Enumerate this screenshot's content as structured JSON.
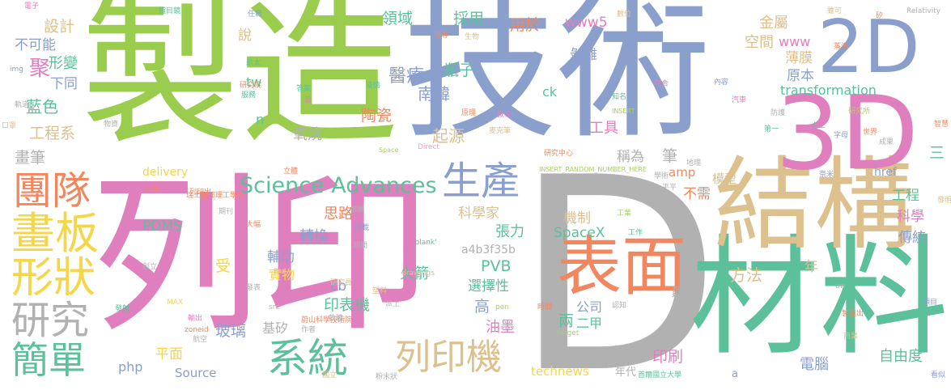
{
  "colors": {
    "green": "#9acd4e",
    "blue": "#8b9fcd",
    "pink": "#e07fbe",
    "orange": "#f2875f",
    "tan": "#dcc08d",
    "teal": "#5cc19a",
    "gray": "#b1b1b1",
    "yellow": "#f5d649",
    "lgreen": "#a9d160",
    "lpink": "#f0a0c8",
    "lorange": "#f6b88a",
    "lblue": "#a7b6d8"
  },
  "words": [
    {
      "t": "製造",
      "c": "green"
    },
    {
      "t": "技術",
      "c": "blue"
    },
    {
      "t": "列印",
      "c": "pink"
    },
    {
      "t": "D",
      "c": "gray"
    },
    {
      "t": "材料",
      "c": "teal"
    },
    {
      "t": "結構",
      "c": "tan"
    },
    {
      "t": "3D",
      "c": "pink"
    },
    {
      "t": "2D",
      "c": "blue"
    },
    {
      "t": "表面",
      "c": "orange"
    },
    {
      "t": "團隊",
      "c": "orange"
    },
    {
      "t": "畫板",
      "c": "yellow"
    },
    {
      "t": "形狀",
      "c": "yellow"
    },
    {
      "t": "研究",
      "c": "gray"
    },
    {
      "t": "簡單",
      "c": "teal"
    },
    {
      "t": "系統",
      "c": "teal"
    },
    {
      "t": "列印機",
      "c": "tan"
    },
    {
      "t": "生產",
      "c": "blue"
    },
    {
      "t": "Science Advances",
      "c": "teal"
    },
    {
      "t": "醫療",
      "c": "blue"
    },
    {
      "t": "陶瓷",
      "c": "orange"
    },
    {
      "t": "南韓",
      "c": "blue"
    },
    {
      "t": "起源",
      "c": "tan"
    },
    {
      "t": "氧烷",
      "c": "gray"
    },
    {
      "t": "畫筆",
      "c": "gray"
    },
    {
      "t": "工程系",
      "c": "tan"
    },
    {
      "t": "藍色",
      "c": "teal"
    },
    {
      "t": "設計",
      "c": "tan"
    },
    {
      "t": "不可能",
      "c": "blue"
    },
    {
      "t": "形變",
      "c": "teal"
    },
    {
      "t": "下同",
      "c": "blue"
    },
    {
      "t": "聚",
      "c": "pink"
    },
    {
      "t": "領域",
      "c": "teal"
    },
    {
      "t": "採用",
      "c": "teal"
    },
    {
      "t": "用於",
      "c": "orange"
    },
    {
      "t": "www5",
      "c": "pink"
    },
    {
      "t": "剝離",
      "c": "blue"
    },
    {
      "t": "瓶子",
      "c": "teal"
    },
    {
      "t": "金屬",
      "c": "tan"
    },
    {
      "t": "空間",
      "c": "tan"
    },
    {
      "t": "www",
      "c": "pink"
    },
    {
      "t": "薄膜",
      "c": "tan"
    },
    {
      "t": "原本",
      "c": "blue"
    },
    {
      "t": "transformation",
      "c": "teal"
    },
    {
      "t": "工具",
      "c": "pink"
    },
    {
      "t": "稱為",
      "c": "gray"
    },
    {
      "t": "筆",
      "c": "gray"
    },
    {
      "t": "amp",
      "c": "orange"
    },
    {
      "t": "模型",
      "c": "tan"
    },
    {
      "t": "href",
      "c": "blue"
    },
    {
      "t": "不需",
      "c": "orange"
    },
    {
      "t": "工程",
      "c": "teal"
    },
    {
      "t": "科學",
      "c": "pink"
    },
    {
      "t": "傳統",
      "c": "blue"
    },
    {
      "t": "年",
      "c": "tan"
    },
    {
      "t": "方法",
      "c": "tan"
    },
    {
      "t": "顛覆",
      "c": "gray"
    },
    {
      "t": "電腦",
      "c": "blue"
    },
    {
      "t": "自由度",
      "c": "teal"
    },
    {
      "t": "印刷",
      "c": "pink"
    },
    {
      "t": "思路",
      "c": "orange"
    },
    {
      "t": "科學家",
      "c": "tan"
    },
    {
      "t": "轉換",
      "c": "blue"
    },
    {
      "t": "張力",
      "c": "teal"
    },
    {
      "t": "輔助",
      "c": "blue"
    },
    {
      "t": "實物",
      "c": "yellow"
    },
    {
      "t": "受",
      "c": "yellow"
    },
    {
      "t": "PDMS",
      "c": "teal"
    },
    {
      "t": "delivery",
      "c": "yellow"
    },
    {
      "t": "tw",
      "c": "teal"
    },
    {
      "t": "說",
      "c": "tan"
    },
    {
      "t": "機制",
      "c": "tan"
    },
    {
      "t": "SpaceX",
      "c": "teal"
    },
    {
      "t": "a4b3f35b",
      "c": "gray"
    },
    {
      "t": "PVB",
      "c": "teal"
    },
    {
      "t": "火箭",
      "c": "teal"
    },
    {
      "t": "選擇性",
      "c": "teal"
    },
    {
      "t": "高",
      "c": "blue"
    },
    {
      "t": "印表機",
      "c": "teal"
    },
    {
      "t": "油墨",
      "c": "pink"
    },
    {
      "t": "二甲",
      "c": "teal"
    },
    {
      "t": "兩",
      "c": "teal"
    },
    {
      "t": "公司",
      "c": "blue"
    },
    {
      "t": "cb",
      "c": "blue"
    },
    {
      "t": "玻璃",
      "c": "blue"
    },
    {
      "t": "基矽",
      "c": "gray"
    },
    {
      "t": "平面",
      "c": "yellow"
    },
    {
      "t": "php",
      "c": "blue"
    },
    {
      "t": "Source",
      "c": "blue"
    },
    {
      "t": "technews",
      "c": "yellow"
    },
    {
      "t": "年代",
      "c": "gray"
    },
    {
      "t": "a",
      "c": "blue"
    },
    {
      "t": "三",
      "c": "teal"
    },
    {
      "t": "Relativity",
      "c": "gray"
    },
    {
      "t": "瑞士聯邦理工學院",
      "c": "orange"
    },
    {
      "t": "蔚山科學技術院",
      "c": "orange"
    },
    {
      "t": "首爾國立大學",
      "c": "teal"
    },
    {
      "t": "INSERT_RANDOM_NUMBER_HERE",
      "c": "lgreen"
    },
    {
      "t": "INSERT",
      "c": "lgreen"
    },
    {
      "t": "研究中心",
      "c": "orange"
    },
    {
      "t": "_blank'",
      "c": "teal"
    },
    {
      "t": "drawings",
      "c": "tan"
    },
    {
      "t": "pen",
      "c": "lgreen"
    },
    {
      "t": "target",
      "c": "lgreen"
    },
    {
      "t": "zoneid",
      "c": "orange"
    },
    {
      "t": "MAX",
      "c": "yellow"
    },
    {
      "t": "Bio",
      "c": "tan"
    },
    {
      "t": "src",
      "c": "lgreen"
    },
    {
      "t": "Space",
      "c": "lgreen"
    },
    {
      "t": "Direct",
      "c": "lpink"
    },
    {
      "t": "ck",
      "c": "teal"
    },
    {
      "t": "img",
      "c": "blue"
    },
    {
      "t": "n",
      "c": "teal"
    },
    {
      "t": "aw",
      "c": "gray"
    },
    {
      "t": "電子",
      "c": "pink"
    },
    {
      "t": "擋目鏡",
      "c": "teal"
    },
    {
      "t": "任職",
      "c": "blue"
    },
    {
      "t": "數位",
      "c": "tan"
    },
    {
      "t": "雖可",
      "c": "tan"
    },
    {
      "t": "矽",
      "c": "orange"
    },
    {
      "t": "研究院",
      "c": "orange"
    },
    {
      "t": "研究所",
      "c": "lgreen"
    },
    {
      "t": "蒸汽",
      "c": "orange"
    },
    {
      "t": "服務",
      "c": "teal"
    },
    {
      "t": "汽車",
      "c": "pink"
    },
    {
      "t": "成果",
      "c": "gray"
    },
    {
      "t": "世界",
      "c": "orange"
    },
    {
      "t": "地理",
      "c": "gray"
    },
    {
      "t": "學術",
      "c": "gray"
    },
    {
      "t": "立體",
      "c": "orange"
    },
    {
      "t": "期刊",
      "c": "gray"
    },
    {
      "t": "相關",
      "c": "gray"
    },
    {
      "t": "運載",
      "c": "blue"
    },
    {
      "t": "大幅",
      "c": "orange"
    },
    {
      "t": "期間",
      "c": "gray"
    },
    {
      "t": "研究員",
      "c": "tan"
    },
    {
      "t": "塑料",
      "c": "tan"
    },
    {
      "t": "時間",
      "c": "orange"
    },
    {
      "t": "工業",
      "c": "lgreen"
    },
    {
      "t": "工作",
      "c": "teal"
    },
    {
      "t": "認知",
      "c": "gray"
    },
    {
      "t": "粉末狀",
      "c": "gray"
    },
    {
      "t": "國立",
      "c": "tan"
    },
    {
      "t": "創立",
      "c": "gray"
    },
    {
      "t": "發射",
      "c": "teal"
    },
    {
      "t": "航空",
      "c": "gray"
    },
    {
      "t": "輸出",
      "c": "pink"
    },
    {
      "t": "發表",
      "c": "gray"
    },
    {
      "t": "作者",
      "c": "gray"
    },
    {
      "t": "軟體",
      "c": "gray"
    },
    {
      "t": "派上",
      "c": "gray"
    },
    {
      "t": "心臟",
      "c": "orange"
    },
    {
      "t": "列印出",
      "c": "orange"
    },
    {
      "t": "製造出",
      "c": "orange"
    },
    {
      "t": "商業",
      "c": "tan"
    },
    {
      "t": "項目",
      "c": "blue"
    },
    {
      "t": "看似",
      "c": "blue"
    },
    {
      "t": "口罩",
      "c": "tan"
    },
    {
      "t": "軌道",
      "c": "gray"
    },
    {
      "t": "智慧",
      "c": "orange"
    },
    {
      "t": "第一",
      "c": "teal"
    },
    {
      "t": "防護",
      "c": "gray"
    },
    {
      "t": "人工",
      "c": "teal"
    },
    {
      "t": "字母",
      "c": "blue"
    },
    {
      "t": "平平",
      "c": "gray"
    },
    {
      "t": "奈米",
      "c": "blue"
    },
    {
      "t": "航太",
      "c": "teal"
    },
    {
      "t": "用導",
      "c": "orange"
    },
    {
      "t": "生物",
      "c": "tan"
    },
    {
      "t": "疫情",
      "c": "teal"
    },
    {
      "t": "答案",
      "c": "teal"
    },
    {
      "t": "黏合",
      "c": "pink"
    },
    {
      "t": "知名",
      "c": "teal"
    },
    {
      "t": "發明",
      "c": "tan"
    },
    {
      "t": "紙張",
      "c": "gray"
    },
    {
      "t": "原理",
      "c": "orange"
    },
    {
      "t": "教育",
      "c": "pink"
    },
    {
      "t": "麥克筆",
      "c": "tan"
    },
    {
      "t": "內容",
      "c": "blue"
    },
    {
      "t": "物資",
      "c": "gray"
    },
    {
      "t": "旨",
      "c": "pink"
    }
  ]
}
